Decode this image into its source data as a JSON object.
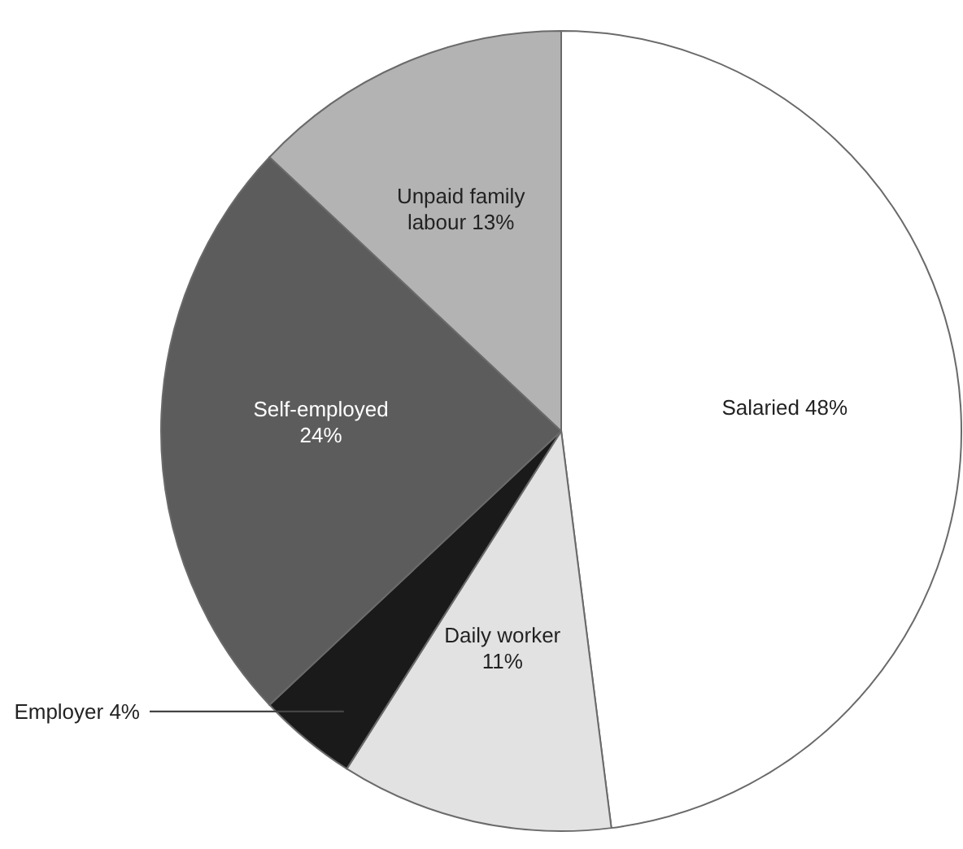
{
  "chart_data": {
    "type": "pie",
    "categories": [
      "Salaried",
      "Daily worker",
      "Employer",
      "Self-employed",
      "Unpaid family labour"
    ],
    "values": [
      48,
      11,
      4,
      24,
      13
    ],
    "value_labels": [
      "48%",
      "11%",
      "4%",
      "24%",
      "13%"
    ],
    "colors": [
      "#ffffff",
      "#e2e2e2",
      "#1a1a1a",
      "#5c5c5c",
      "#b3b3b3"
    ],
    "legend": false
  }
}
